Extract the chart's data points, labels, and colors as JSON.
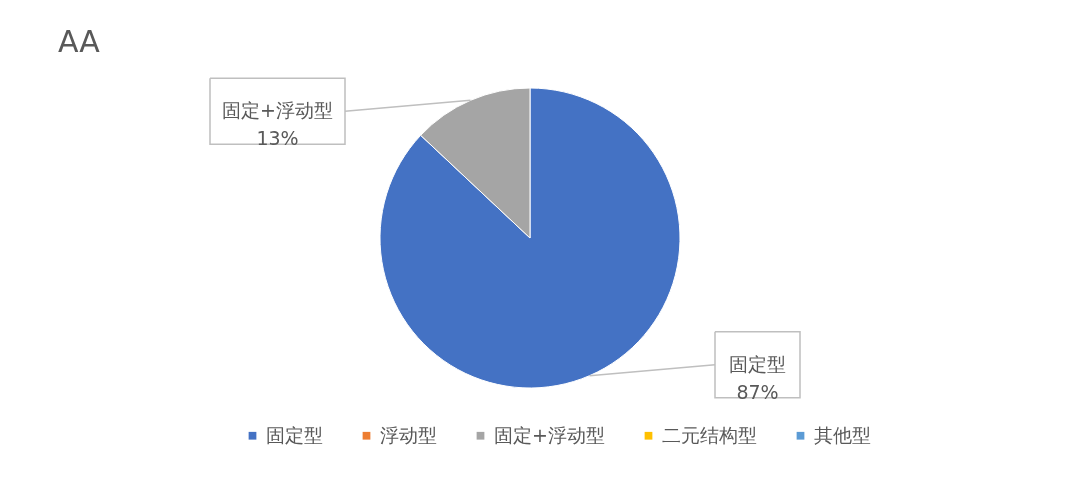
{
  "chart_data": {
    "type": "pie",
    "title": "AA",
    "categories": [
      "固定型",
      "浮动型",
      "固定+浮动型",
      "二元结构型",
      "其他型"
    ],
    "values": [
      87,
      0,
      13,
      0,
      0
    ],
    "colors": [
      "#4472c4",
      "#ed7d31",
      "#a5a5a5",
      "#ffc000",
      "#5b9bd5"
    ],
    "value_labels": [
      "87%",
      null,
      "13%",
      null,
      null
    ],
    "legend": "bottom"
  }
}
